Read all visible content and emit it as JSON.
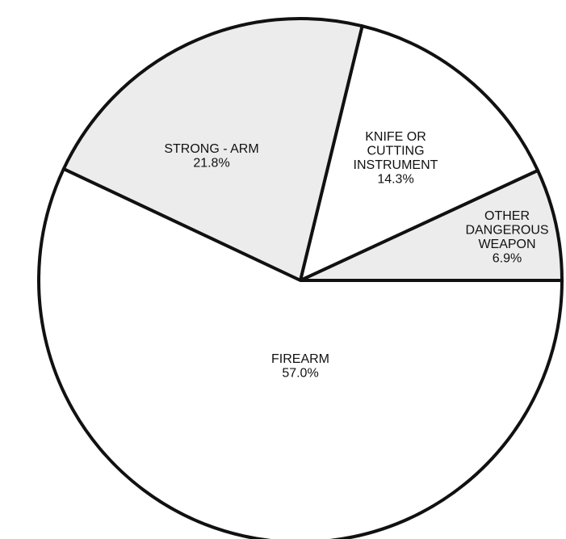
{
  "chart_data": {
    "type": "pie",
    "categories": [
      [
        "OTHER",
        "DANGEROUS",
        "WEAPON"
      ],
      [
        "KNIFE OR",
        "CUTTING",
        "INSTRUMENT"
      ],
      [
        "STRONG - ARM"
      ],
      [
        "FIREARM"
      ]
    ],
    "values": [
      6.9,
      14.3,
      21.8,
      57.0
    ],
    "value_labels": [
      "6.9%",
      "14.3%",
      "21.8%",
      "57.0%"
    ],
    "colors": [
      "#ececec",
      "#ffffff",
      "#ececec",
      "#ffffff"
    ]
  }
}
